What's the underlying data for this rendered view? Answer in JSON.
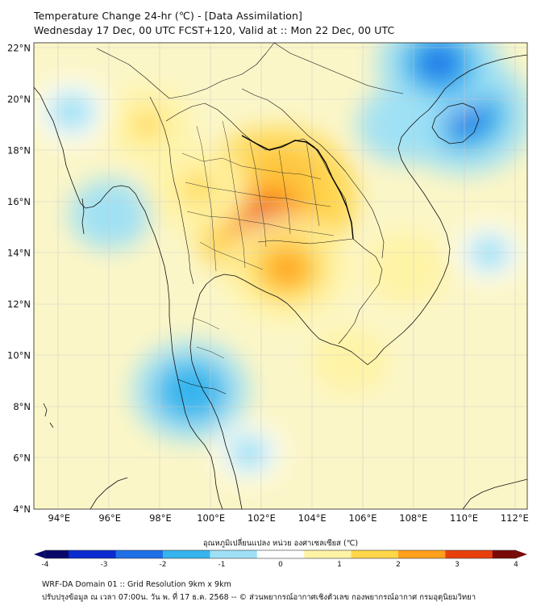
{
  "title": {
    "line1": "Temperature Change 24-hr (℃) - [Data Assimilation]",
    "line2": "Wednesday 17 Dec, 00 UTC FCST+120, Valid at :: Mon 22 Dec, 00 UTC"
  },
  "axes": {
    "lat_labels": [
      "22°N",
      "20°N",
      "18°N",
      "16°N",
      "14°N",
      "12°N",
      "10°N",
      "8°N",
      "6°N",
      "4°N"
    ],
    "lat_values": [
      22,
      20,
      18,
      16,
      14,
      12,
      10,
      8,
      6,
      4
    ],
    "lon_labels": [
      "94°E",
      "96°E",
      "98°E",
      "100°E",
      "102°E",
      "104°E",
      "106°E",
      "108°E",
      "110°E",
      "112°E"
    ],
    "lon_values": [
      94,
      96,
      98,
      100,
      102,
      104,
      106,
      108,
      110,
      112
    ],
    "lon_range": [
      93.0,
      112.5
    ],
    "lat_range": [
      4.0,
      22.2
    ]
  },
  "colorbar": {
    "title": "อุณหภูมิเปลี่ยนแปลง หน่วย องศาเซลเซียส (℃)",
    "tick_labels": [
      "-4",
      "-3",
      "-2",
      "-1",
      "0",
      "1",
      "2",
      "3",
      "4"
    ],
    "tick_values": [
      -4,
      -3,
      -2,
      -1,
      0,
      1,
      2,
      3,
      4
    ],
    "min": -4,
    "max": 4,
    "colors": [
      "#08086b",
      "#0a2bd0",
      "#1f6fe6",
      "#35b4ee",
      "#9fe0f6",
      "#ffffff",
      "#fff3a6",
      "#ffd64a",
      "#ff9f1a",
      "#e8400d",
      "#7a0a07"
    ]
  },
  "field_anomalies": [
    {
      "name": "central-thailand-warm",
      "lon": 102.6,
      "lat": 16.2,
      "value": 3.2
    },
    {
      "name": "korat-warm",
      "lon": 102.2,
      "lat": 15.2,
      "value": 2.8
    },
    {
      "name": "cambodia-warm",
      "lon": 103.0,
      "lat": 13.4,
      "value": 2.2
    },
    {
      "name": "western-thailand-warm",
      "lon": 99.5,
      "lat": 16.5,
      "value": 1.5
    },
    {
      "name": "myanmar-warm",
      "lon": 97.5,
      "lat": 19.0,
      "value": 1.2
    },
    {
      "name": "vietnam-central-warm",
      "lon": 107.7,
      "lat": 13.4,
      "value": 1.1
    },
    {
      "name": "mekong-warm",
      "lon": 105.5,
      "lat": 9.8,
      "value": 0.9
    },
    {
      "name": "hainan-cold",
      "lon": 110.0,
      "lat": 19.4,
      "value": -2.6
    },
    {
      "name": "south-china-cold",
      "lon": 109.0,
      "lat": 21.4,
      "value": -2.2
    },
    {
      "name": "gulf-of-tonkin-cold",
      "lon": 107.5,
      "lat": 19.0,
      "value": -1.2
    },
    {
      "name": "peninsula-cold",
      "lon": 99.2,
      "lat": 8.6,
      "value": -2.0
    },
    {
      "name": "andaman-cold",
      "lon": 96.0,
      "lat": 15.5,
      "value": -1.0
    },
    {
      "name": "bay-of-bengal-cold",
      "lon": 94.5,
      "lat": 19.5,
      "value": -0.8
    },
    {
      "name": "south-china-sea-cool",
      "lon": 111.0,
      "lat": 14.0,
      "value": -0.6
    },
    {
      "name": "malaysia-cool",
      "lon": 101.5,
      "lat": 6.2,
      "value": -0.6
    }
  ],
  "footer": {
    "line1": "WRF-DA Domain 01 :: Grid Resolution 9km x 9km",
    "line2": "ปรับปรุงข้อมูล ณ เวลา 07:00น. วัน พ. ที่ 17 ธ.ค. 2568 -- © ส่วนพยากรณ์อากาศเชิงตัวเลข กองพยากรณ์อากาศ กรมอุตุนิยมวิทยา"
  }
}
